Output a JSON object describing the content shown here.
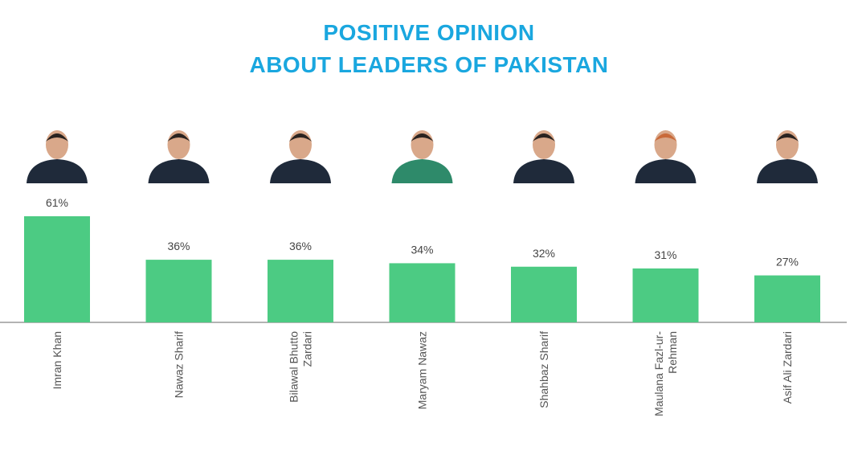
{
  "header": {
    "title_line1": "POSITIVE OPINION",
    "title_line2": "ABOUT LEADERS OF PAKISTAN"
  },
  "colors": {
    "title": "#1aa7df",
    "bar": "#4ccb83",
    "axis": "#9a9a9a"
  },
  "chart_data": {
    "type": "bar",
    "title": "POSITIVE OPINION ABOUT LEADERS OF PAKISTAN",
    "categories": [
      [
        "Imran Khan"
      ],
      [
        "Nawaz Sharif"
      ],
      [
        "Bilawal Bhutto",
        "Zardari"
      ],
      [
        "Maryam Nawaz"
      ],
      [
        "Shahbaz Sharif"
      ],
      [
        "Maulana Fazl-ur-",
        "Rehman"
      ],
      [
        "Asif Ali Zardari"
      ]
    ],
    "values": [
      61,
      36,
      36,
      34,
      32,
      31,
      27
    ],
    "value_labels": [
      "61%",
      "36%",
      "36%",
      "34%",
      "32%",
      "31%",
      "27%"
    ],
    "unit": "%",
    "ylim": [
      0,
      61
    ],
    "grid": false,
    "legend": "none",
    "photo_icons": [
      "portrait-icon",
      "portrait-icon",
      "portrait-icon",
      "portrait-icon",
      "portrait-icon",
      "portrait-icon",
      "portrait-icon"
    ]
  }
}
